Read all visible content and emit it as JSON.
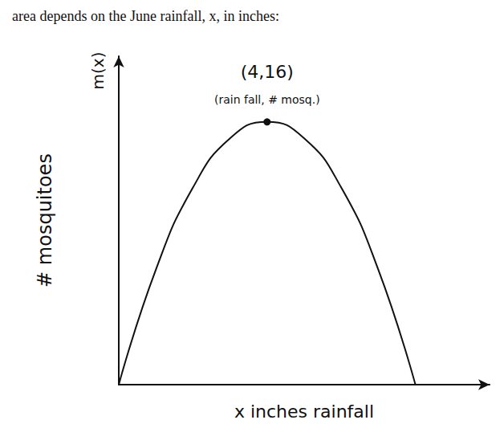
{
  "chart_data": {
    "type": "line",
    "title": "area depends on the June rainfall, x, in inches:",
    "x_label": "x inches rainfall",
    "y_label": "# mosquitoes",
    "y_function_label": "m(x)",
    "annotations": [
      "(4,16)",
      "(rain fall, # mosq.)"
    ],
    "x": [
      0,
      1,
      2,
      3,
      4,
      5,
      6,
      7,
      8
    ],
    "values": [
      0,
      7,
      12,
      15,
      16,
      15,
      12,
      7,
      0
    ],
    "color": "#111111",
    "xlim": [
      0,
      10
    ],
    "ylim": [
      0,
      20
    ],
    "xticks": [],
    "yticks": [],
    "grid": false,
    "tick_labels": false
  }
}
